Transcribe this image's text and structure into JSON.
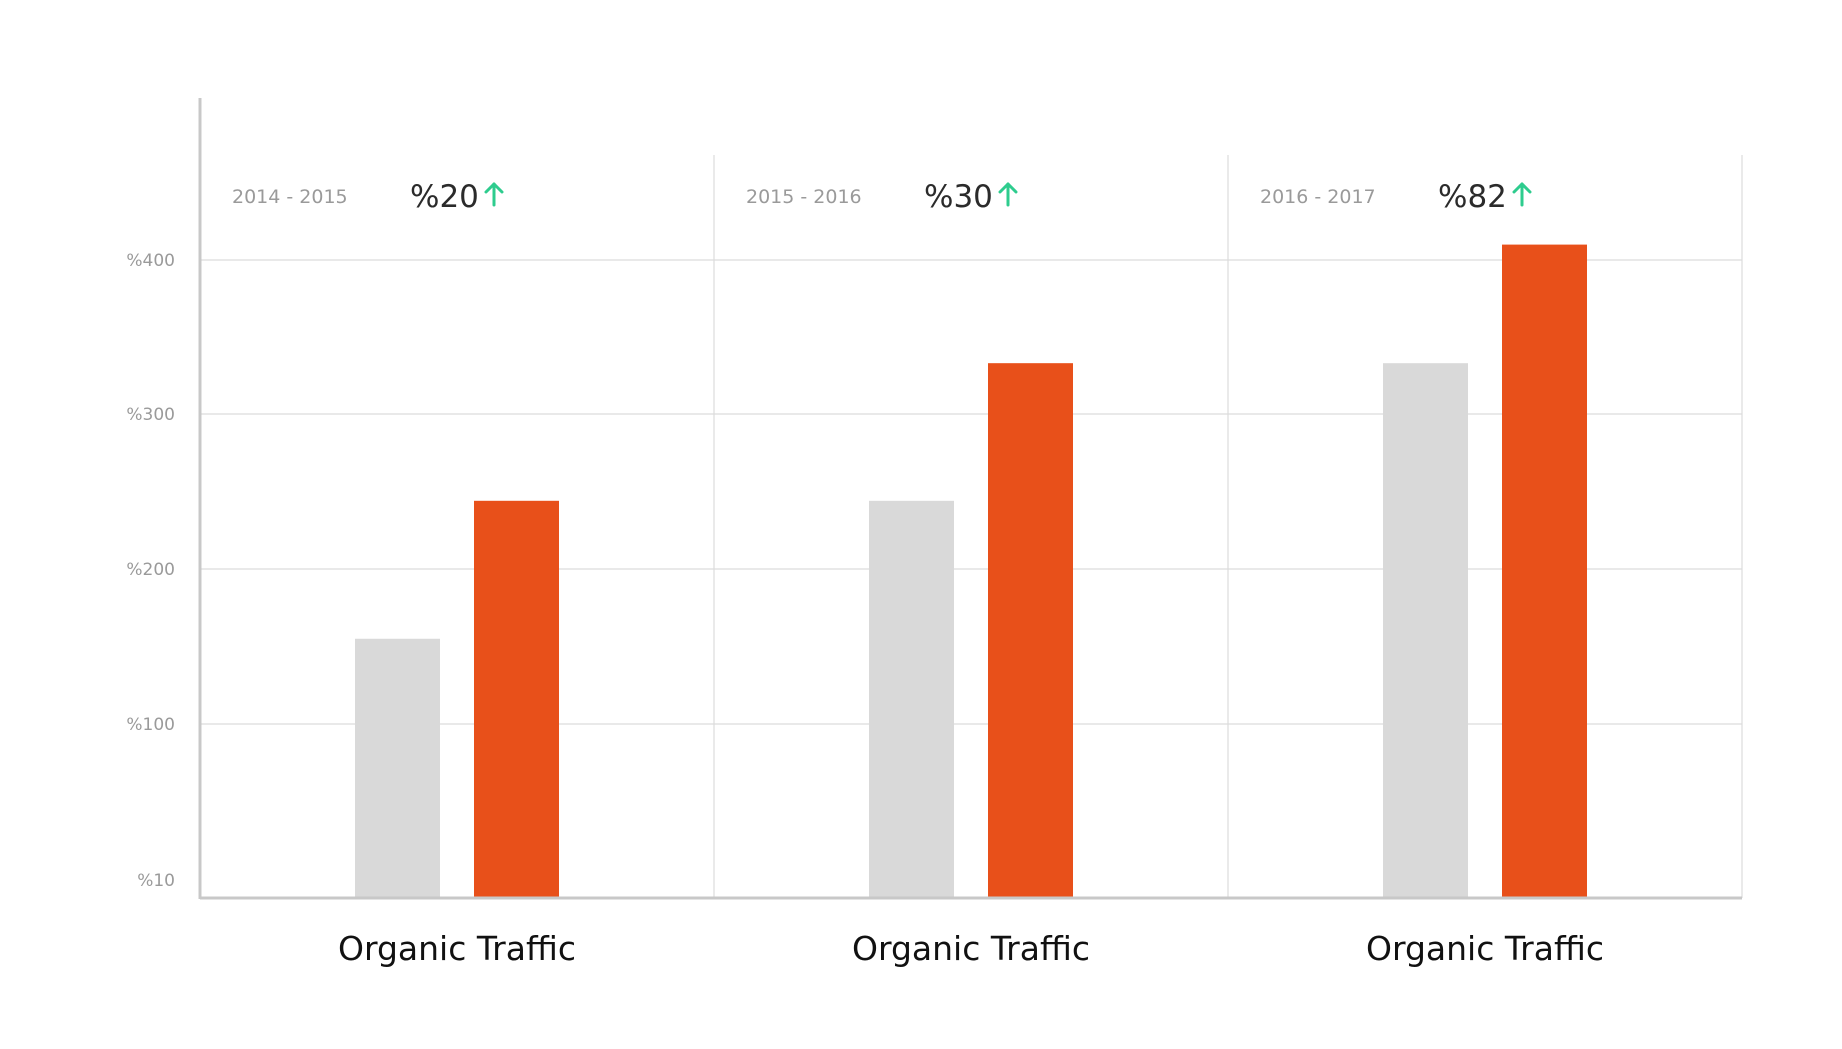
{
  "chart_data": {
    "type": "bar",
    "title": "",
    "xlabel": "",
    "ylabel": "",
    "y_ticks": [
      {
        "value": 10,
        "label": "%10"
      },
      {
        "value": 100,
        "label": "%100"
      },
      {
        "value": 200,
        "label": "%200"
      },
      {
        "value": 300,
        "label": "%300"
      },
      {
        "value": 400,
        "label": "%400"
      }
    ],
    "ylim": [
      0,
      400
    ],
    "grid": true,
    "legend": "none",
    "groups": [
      {
        "category": "Organic Traffic",
        "period": "2014 - 2015",
        "change": "%20",
        "values": [
          155,
          244
        ]
      },
      {
        "category": "Organic Traffic",
        "period": "2015 - 2016",
        "change": "%30",
        "values": [
          244,
          333
        ]
      },
      {
        "category": "Organic Traffic",
        "period": "2016 - 2017",
        "change": "%82",
        "values": [
          333,
          410
        ]
      }
    ],
    "colors": {
      "previous": "#d9d9d9",
      "current": "#e8501a",
      "arrow": "#2ecc8e",
      "grid": "#dcdcdc",
      "axis": "#c8c8c8"
    }
  }
}
